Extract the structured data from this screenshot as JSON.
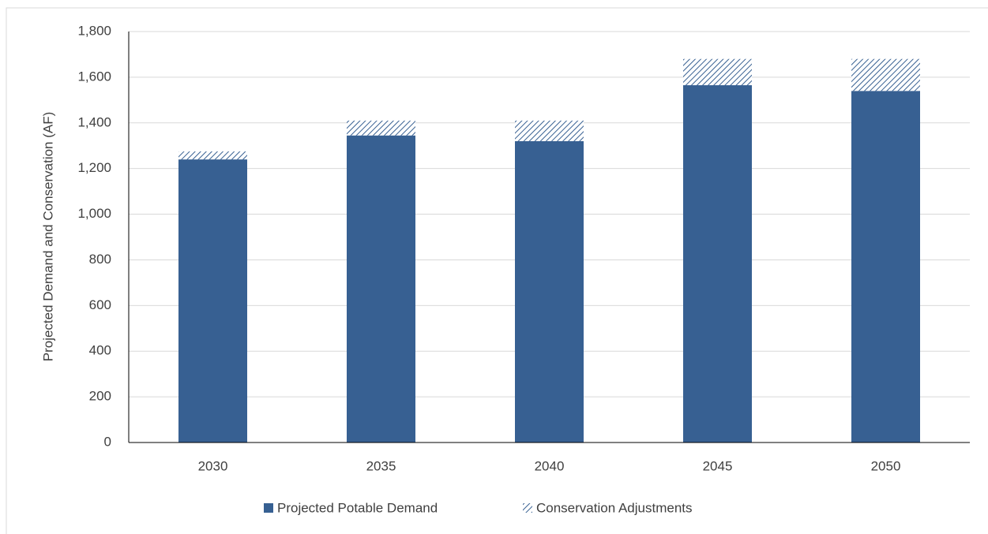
{
  "chart_data": {
    "type": "bar",
    "stacked": true,
    "y_label": "Projected  Demand and Conservation (AF)",
    "categories": [
      "2030",
      "2035",
      "2040",
      "2045",
      "2050"
    ],
    "series": [
      {
        "name": "Projected Potable Demand",
        "color": "#376092",
        "pattern": "solid",
        "values": [
          1240,
          1345,
          1320,
          1565,
          1540
        ]
      },
      {
        "name": "Conservation Adjustments",
        "color": "#376092",
        "pattern": "hatch",
        "values": [
          35,
          65,
          90,
          115,
          140
        ]
      }
    ],
    "ylim": [
      0,
      1800
    ],
    "yticks": [
      0,
      200,
      400,
      600,
      800,
      {
        "value": 1000,
        "label": "1,000"
      },
      {
        "value": 1200,
        "label": "1,200"
      },
      {
        "value": 1400,
        "label": "1,400"
      },
      {
        "value": 1600,
        "label": "1,600"
      },
      {
        "value": 1800,
        "label": "1,800"
      }
    ],
    "grid": true,
    "legend": "bottom"
  }
}
